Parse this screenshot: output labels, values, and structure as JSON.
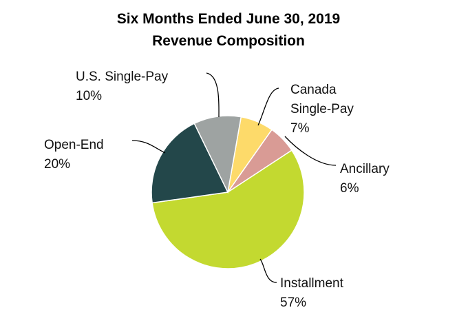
{
  "chart_data": {
    "type": "pie",
    "title": "Six Months Ended June 30, 2019",
    "subtitle": "Revenue Composition",
    "categories": [
      "Canada Single-Pay",
      "Ancillary",
      "Installment",
      "Open-End",
      "U.S. Single-Pay"
    ],
    "values": [
      7,
      6,
      57,
      20,
      10
    ],
    "value_labels": [
      "7%",
      "6%",
      "57%",
      "20%",
      "10%"
    ],
    "colors": [
      "#fdda6a",
      "#d99b95",
      "#c3d930",
      "#23474a",
      "#9ea3a2"
    ]
  }
}
